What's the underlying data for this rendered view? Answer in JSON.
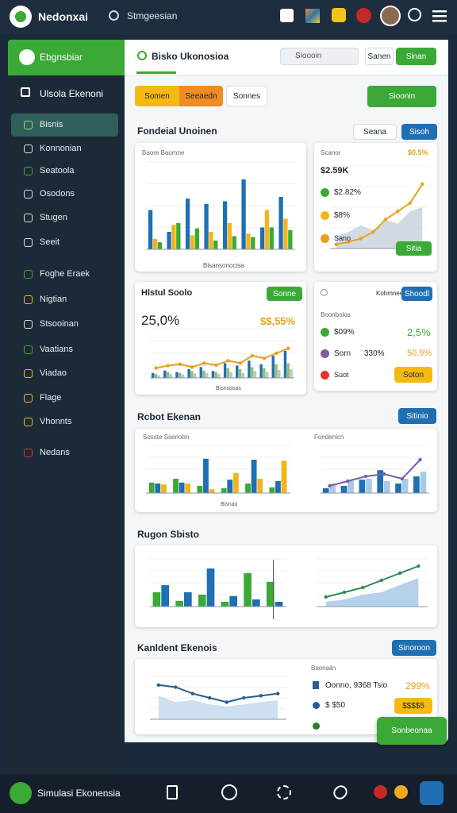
{
  "header": {
    "app_name": "Nedonxai",
    "search": "Stmgeesian"
  },
  "sidebar": {
    "title": "Ebgnsbiar",
    "heading": "Ulsola Ekenoni",
    "items": [
      "Bisnis",
      "Konnonian",
      "Seatoola",
      "Osodons",
      "Stugen",
      "Seeit",
      "Foghe Eraek",
      "Nigtian",
      "Stsooinan",
      "Vaatians",
      "Viadao",
      "Flage",
      "Vhonnts",
      "Nedans"
    ]
  },
  "main": {
    "title": "Bisko Ukonosioa",
    "search": "Sioooin",
    "buttons": [
      "Sanen",
      "Sinan"
    ],
    "tabs": [
      "Somen",
      "Seeaedn",
      "Sonnes"
    ],
    "action": "Sioonin",
    "section": {
      "title": "Fondeial Unoinen",
      "filter": "Seana",
      "button": "Sisoh"
    }
  },
  "cards": [
    {
      "subtitle": "Baore Baomne",
      "caption": "Bisansonocisa",
      "chart": {
        "ylim": [
          0,
          100
        ],
        "series": [
          {
            "type": "bar",
            "color": "#1f6fb2",
            "values": [
              45,
              20,
              58,
              52,
              55,
              80,
              25,
              60
            ]
          },
          {
            "type": "bar",
            "color": "#f2b51c",
            "values": [
              12,
              28,
              16,
              20,
              30,
              18,
              45,
              35
            ]
          },
          {
            "type": "bar",
            "color": "#3aa935",
            "values": [
              8,
              30,
              24,
              10,
              15,
              14,
              25,
              22
            ]
          }
        ]
      }
    },
    {
      "title": "Scanor",
      "badge": "$0.5%",
      "value": "$2.59K",
      "legend": [
        "$2.82%",
        "$8%",
        "Sano"
      ],
      "button": "Sitia",
      "chart": {
        "ylim": [
          0,
          100
        ],
        "series": [
          {
            "type": "area",
            "color": "#c9d3dc",
            "values": [
              15,
              20,
              28,
              22,
              35,
              30,
              45,
              50
            ]
          },
          {
            "type": "line",
            "color": "#e8a020",
            "values": [
              5,
              8,
              12,
              20,
              35,
              45,
              55,
              78
            ]
          }
        ]
      }
    },
    {
      "title": "Hlstul Soolo",
      "button": "Sonne",
      "value": "25,0%",
      "change": "$$,55%",
      "caption": "Bisnsosas",
      "chart": {
        "ylim": [
          0,
          100
        ],
        "series": [
          {
            "type": "bar",
            "color": "#1f6fb2",
            "values": [
              10,
              15,
              12,
              18,
              22,
              14,
              30,
              25,
              35,
              28,
              45,
              55
            ]
          },
          {
            "type": "bar",
            "color": "#8cc06a",
            "values": [
              8,
              12,
              10,
              14,
              15,
              12,
              20,
              18,
              22,
              20,
              28,
              30
            ]
          },
          {
            "type": "bar",
            "color": "#b8c6d2",
            "values": [
              5,
              8,
              7,
              9,
              10,
              8,
              12,
              10,
              14,
              12,
              16,
              18
            ]
          },
          {
            "type": "line",
            "color": "#e8a020",
            "values": [
              20,
              25,
              28,
              22,
              30,
              26,
              35,
              30,
              45,
              40,
              50,
              60
            ]
          }
        ]
      }
    },
    {
      "title": "Kohmnee",
      "button": "Shoodl",
      "header": "Boonbolos",
      "rows": [
        [
          "$09%",
          "2,5%"
        ],
        [
          "Sorn",
          "330%",
          "50,9%"
        ],
        [
          "Suot",
          "Soton"
        ]
      ]
    },
    {
      "title": "Rcbot Ekenan",
      "button": "Sitinio",
      "left_title": "Sosste Ssenobn",
      "right_title": "Fondenlcn",
      "caption": "Bisnao",
      "left_chart": {
        "ylim": [
          0,
          100
        ],
        "series": [
          {
            "type": "bar",
            "color": "#3aa935",
            "values": [
              22,
              30,
              15,
              10,
              20,
              12
            ]
          },
          {
            "type": "bar",
            "color": "#1f6fb2",
            "values": [
              20,
              22,
              72,
              28,
              70,
              25
            ]
          },
          {
            "type": "bar",
            "color": "#f2b51c",
            "values": [
              18,
              20,
              8,
              42,
              30,
              68
            ]
          }
        ]
      },
      "right_chart": {
        "ylim": [
          0,
          100
        ],
        "series": [
          {
            "type": "bar",
            "color": "#1f6fb2",
            "values": [
              10,
              15,
              28,
              48,
              20,
              35
            ]
          },
          {
            "type": "bar",
            "color": "#a9c9e8",
            "values": [
              20,
              25,
              30,
              25,
              30,
              45
            ]
          },
          {
            "type": "line",
            "color": "#7b5ea7",
            "values": [
              15,
              25,
              35,
              40,
              30,
              70
            ]
          }
        ]
      }
    },
    {
      "title": "Rugon Sbisto",
      "left_chart": {
        "ylim": [
          0,
          100
        ],
        "series": [
          {
            "type": "bar",
            "color": "#3aa935",
            "values": [
              30,
              12,
              25,
              10,
              70,
              52
            ]
          },
          {
            "type": "bar",
            "color": "#1f6fb2",
            "values": [
              45,
              30,
              80,
              22,
              15,
              10
            ]
          }
        ]
      },
      "right_chart": {
        "ylim": [
          0,
          100
        ],
        "series": [
          {
            "type": "area",
            "color": "#a9c9e8",
            "values": [
              10,
              15,
              25,
              30,
              45,
              60
            ]
          },
          {
            "type": "line",
            "color": "#2e8b57",
            "values": [
              20,
              30,
              40,
              55,
              70,
              85
            ]
          }
        ]
      }
    },
    {
      "title": "Kanldent Ekenois",
      "button": "Sinoroon",
      "right_title": "Baonailn",
      "rows": [
        [
          "Oonno, 9368 Tsio",
          "299%"
        ],
        [
          "$ $50",
          "$$$$5"
        ]
      ],
      "chart": {
        "ylim": [
          0,
          100
        ],
        "series": [
          {
            "type": "area",
            "color": "#c6dcef",
            "values": [
              55,
              40,
              45,
              35,
              30,
              35,
              40,
              45
            ]
          },
          {
            "type": "line",
            "color": "#2c5d8a",
            "values": [
              80,
              75,
              60,
              50,
              40,
              50,
              55,
              60
            ]
          }
        ]
      }
    }
  ],
  "floating_button": "Sonbeonaa",
  "footer": {
    "title": "Simulasi Ekonensia"
  }
}
